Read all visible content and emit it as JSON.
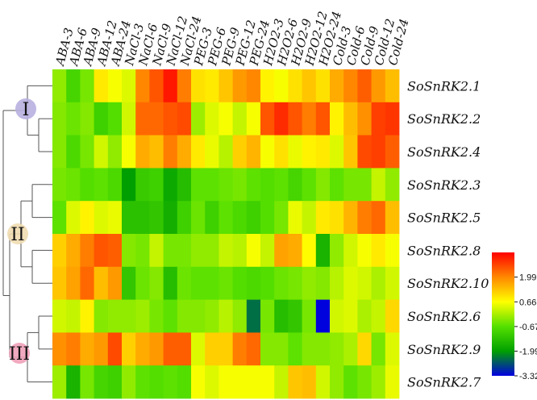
{
  "chart_data": {
    "type": "heatmap",
    "columns": [
      "ABA-3",
      "ABA-6",
      "ABA-9",
      "ABA-12",
      "ABA-24",
      "NaCl-3",
      "NaCl-6",
      "NaCl-9",
      "NaCl-12",
      "NaCl-24",
      "PEG-3",
      "PEG-6",
      "PEG-9",
      "PEG-12",
      "PEG-24",
      "H2O2-3",
      "H2O2-6",
      "H2O2-9",
      "H2O2-12",
      "H2O2-24",
      "Cold-3",
      "Cold-6",
      "Cold-9",
      "Cold-12",
      "Cold-24"
    ],
    "rows": [
      "SoSnRK2.1",
      "SoSnRK2.2",
      "SoSnRK2.4",
      "SoSnRK2.3",
      "SoSnRK2.5",
      "SoSnRK2.8",
      "SoSnRK2.10",
      "SoSnRK2.6",
      "SoSnRK2.9",
      "SoSnRK2.7"
    ],
    "values": [
      [
        -0.2,
        -0.9,
        -0.4,
        0.9,
        0.6,
        0.4,
        2.0,
        2.5,
        3.1,
        2.1,
        1.0,
        0.9,
        1.3,
        1.8,
        2.0,
        0.8,
        0.6,
        1.0,
        1.3,
        1.0,
        1.6,
        2.0,
        2.4,
        1.8,
        1.4
      ],
      [
        -0.3,
        -0.5,
        -0.3,
        -1.0,
        -0.7,
        0.3,
        2.3,
        2.3,
        2.5,
        2.6,
        -0.1,
        0.4,
        0.6,
        0.2,
        0.6,
        2.5,
        2.9,
        2.5,
        2.1,
        2.5,
        0.8,
        1.4,
        1.9,
        2.7,
        2.8
      ],
      [
        -0.3,
        -0.8,
        -0.4,
        0.3,
        -0.2,
        0.6,
        1.6,
        1.4,
        2.1,
        1.6,
        0.9,
        0.5,
        0.1,
        1.2,
        1.5,
        0.6,
        1.0,
        0.5,
        0.8,
        0.9,
        0.4,
        1.3,
        2.6,
        2.7,
        2.4
      ],
      [
        -0.4,
        -0.5,
        -0.7,
        -0.6,
        -0.8,
        -2.0,
        -1.1,
        -1.0,
        -1.8,
        -1.4,
        -0.6,
        -0.6,
        -0.5,
        -0.4,
        -0.6,
        -0.7,
        -0.6,
        -0.9,
        -0.6,
        -0.3,
        -0.6,
        -0.4,
        -0.4,
        0.2,
        -0.2
      ],
      [
        -0.6,
        0.4,
        0.8,
        0.4,
        0.5,
        -1.3,
        -1.3,
        -1.2,
        -1.7,
        -1.0,
        -0.5,
        -1.0,
        -0.6,
        -0.8,
        -1.0,
        -0.7,
        -0.4,
        0.5,
        0.2,
        0.9,
        1.0,
        1.5,
        2.1,
        2.3,
        1.4
      ],
      [
        1.2,
        1.6,
        2.1,
        2.5,
        2.4,
        -0.3,
        -0.4,
        0.2,
        -0.4,
        -0.4,
        -0.2,
        -0.2,
        0.2,
        0.1,
        0.6,
        0.2,
        1.7,
        1.6,
        0.7,
        -1.6,
        -0.2,
        0.3,
        0.6,
        0.9,
        0.6
      ],
      [
        1.3,
        1.7,
        2.3,
        1.4,
        1.8,
        -1.2,
        -0.5,
        -0.3,
        -1.4,
        -0.5,
        -0.6,
        -0.6,
        -0.5,
        -0.7,
        -0.8,
        -0.7,
        -0.5,
        -0.4,
        -0.2,
        -0.3,
        0.1,
        0.4,
        0.3,
        0.0,
        0.3
      ],
      [
        0.3,
        0.2,
        0.8,
        -0.3,
        -0.2,
        -0.2,
        -0.1,
        -0.4,
        -0.6,
        -0.3,
        -0.3,
        -0.2,
        0.1,
        -0.2,
        -2.4,
        -0.4,
        -1.4,
        -1.2,
        -0.4,
        -3.3,
        0.3,
        0.4,
        0.0,
        0.2,
        1.1
      ],
      [
        1.9,
        2.1,
        1.6,
        1.8,
        2.6,
        1.2,
        1.6,
        1.8,
        2.4,
        2.4,
        0.4,
        1.2,
        1.2,
        2.1,
        2.3,
        -0.3,
        -0.3,
        -0.6,
        -0.3,
        -0.3,
        -0.2,
        0.0,
        1.1,
        -0.4,
        0.4
      ],
      [
        -0.1,
        -1.6,
        -0.4,
        -0.9,
        -1.0,
        -0.2,
        -0.6,
        -0.7,
        -0.6,
        -0.7,
        0.6,
        0.4,
        0.6,
        0.6,
        0.6,
        0.6,
        0.2,
        1.3,
        1.4,
        0.3,
        -0.2,
        -0.6,
        -0.4,
        -0.1,
        0.5
      ]
    ],
    "clusters": [
      "I",
      "II",
      "III"
    ],
    "legend": {
      "ticks": [
        "1.99",
        "0.66",
        "-0.67",
        "-1.99",
        "-3.32"
      ],
      "tick_values": [
        1.99,
        0.66,
        -0.67,
        -1.99,
        -3.32
      ],
      "min": -3.32,
      "max": 3.32,
      "colors": [
        "#0000e0",
        "#00a000",
        "#55e000",
        "#ffff00",
        "#ff8800",
        "#ff0000"
      ],
      "placement": "right"
    },
    "dendrogram": {
      "placement": "left",
      "cluster_colors": [
        "#b8b0e0",
        "#f0dcb0",
        "#f0a0b8"
      ]
    }
  }
}
